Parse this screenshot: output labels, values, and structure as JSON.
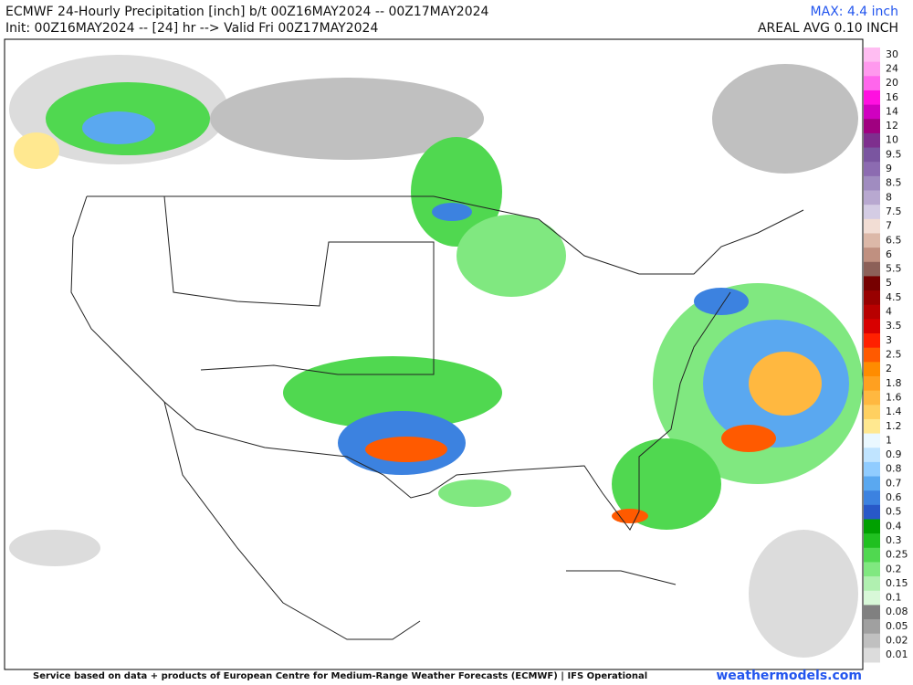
{
  "header": {
    "title": "ECMWF 24-Hourly Precipitation [inch] b/t 00Z16MAY2024 -- 00Z17MAY2024",
    "subtitle": "Init: 00Z16MAY2024 -- [24] hr --> Valid Fri 00Z17MAY2024",
    "max": "MAX: 4.4 inch",
    "areal_avg": "AREAL AVG 0.10 INCH"
  },
  "legend": {
    "items": [
      {
        "label": "30",
        "color": "#ffbdf2"
      },
      {
        "label": "24",
        "color": "#ff99ee"
      },
      {
        "label": "20",
        "color": "#ff66ec"
      },
      {
        "label": "16",
        "color": "#ff10e0"
      },
      {
        "label": "14",
        "color": "#d000c0"
      },
      {
        "label": "12",
        "color": "#a00080"
      },
      {
        "label": "10",
        "color": "#7e2f8e"
      },
      {
        "label": "9.5",
        "color": "#7a55a0"
      },
      {
        "label": "9",
        "color": "#8c6bb1"
      },
      {
        "label": "8.5",
        "color": "#a08cc0"
      },
      {
        "label": "8",
        "color": "#b8a8d0"
      },
      {
        "label": "7.5",
        "color": "#d4cce4"
      },
      {
        "label": "7",
        "color": "#f2ddd4"
      },
      {
        "label": "6.5",
        "color": "#dcb8a8"
      },
      {
        "label": "6",
        "color": "#c09080"
      },
      {
        "label": "5.5",
        "color": "#8c6058"
      },
      {
        "label": "5",
        "color": "#760000"
      },
      {
        "label": "4.5",
        "color": "#980000"
      },
      {
        "label": "4",
        "color": "#b80000"
      },
      {
        "label": "3.5",
        "color": "#d80000"
      },
      {
        "label": "3",
        "color": "#ff2000"
      },
      {
        "label": "2.5",
        "color": "#ff5a00"
      },
      {
        "label": "2",
        "color": "#ff8c00"
      },
      {
        "label": "1.8",
        "color": "#ffa020"
      },
      {
        "label": "1.6",
        "color": "#ffb840"
      },
      {
        "label": "1.4",
        "color": "#ffd060"
      },
      {
        "label": "1.2",
        "color": "#ffe890"
      },
      {
        "label": "1",
        "color": "#eaf8ff"
      },
      {
        "label": "0.9",
        "color": "#c0e4ff"
      },
      {
        "label": "0.8",
        "color": "#90ccff"
      },
      {
        "label": "0.7",
        "color": "#5aa8f0"
      },
      {
        "label": "0.6",
        "color": "#3c82e0"
      },
      {
        "label": "0.5",
        "color": "#2858c8"
      },
      {
        "label": "0.4",
        "color": "#00a000"
      },
      {
        "label": "0.3",
        "color": "#20c020"
      },
      {
        "label": "0.25",
        "color": "#50d850"
      },
      {
        "label": "0.2",
        "color": "#80e880"
      },
      {
        "label": "0.15",
        "color": "#b0f0b0"
      },
      {
        "label": "0.1",
        "color": "#d8f8d8"
      },
      {
        "label": "0.08",
        "color": "#808080"
      },
      {
        "label": "0.05",
        "color": "#a0a0a0"
      },
      {
        "label": "0.02",
        "color": "#c0c0c0"
      },
      {
        "label": "0.01",
        "color": "#dcdcdc"
      }
    ]
  },
  "footer": {
    "credit": "Service based on data + products of European Centre for Medium-Range Weather Forecasts (ECMWF) | IFS Operational",
    "site": "weathermodels.com"
  }
}
